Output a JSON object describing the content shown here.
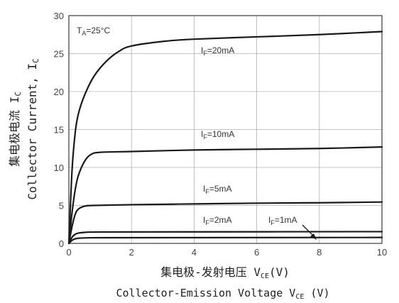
{
  "chart_data": {
    "type": "line",
    "xlabel_cn": "集电极-发射电压 V",
    "xlabel_cn_sub": "CE",
    "xlabel_cn_unit": "(V)",
    "xlabel_en": "Collector-Emission Voltage V",
    "xlabel_en_sub": "CE",
    "xlabel_en_unit": " (V)",
    "ylabel_cn": "集电极电流 I",
    "ylabel_cn_sub": "C",
    "ylabel_en": "Collector Current, I",
    "ylabel_en_sub": "C",
    "condition": {
      "main": "T",
      "sub": "A",
      "rest": "=25°C"
    },
    "xlim": [
      0,
      10
    ],
    "ylim": [
      0,
      30
    ],
    "xticks": [
      "0",
      "2",
      "4",
      "6",
      "8",
      "10"
    ],
    "yticks": [
      "0",
      "5",
      "10",
      "15",
      "20",
      "25",
      "30"
    ],
    "grid": true,
    "series": [
      {
        "name": "IF=20mA",
        "label_main": "I",
        "label_sub": "F",
        "label_rest": "=20mA",
        "x": [
          0,
          0.1,
          0.2,
          0.3,
          0.5,
          0.8,
          1.2,
          1.6,
          2.0,
          3.0,
          4.0,
          6.0,
          8.0,
          10.0
        ],
        "y": [
          0,
          9.5,
          14.5,
          17.0,
          19.5,
          22.0,
          24.0,
          25.3,
          26.0,
          26.6,
          26.9,
          27.2,
          27.5,
          27.9
        ]
      },
      {
        "name": "IF=10mA",
        "label_main": "I",
        "label_sub": "F",
        "label_rest": "=10mA",
        "x": [
          0,
          0.1,
          0.2,
          0.3,
          0.5,
          0.7,
          1.0,
          2.0,
          4.0,
          6.0,
          8.0,
          10.0
        ],
        "y": [
          0,
          4.0,
          7.0,
          8.9,
          10.8,
          11.7,
          12.0,
          12.1,
          12.3,
          12.4,
          12.5,
          12.7
        ]
      },
      {
        "name": "IF=5mA",
        "label_main": "I",
        "label_sub": "F",
        "label_rest": "=5mA",
        "x": [
          0,
          0.1,
          0.2,
          0.3,
          0.5,
          0.8,
          2.0,
          4.0,
          6.0,
          8.0,
          10.0
        ],
        "y": [
          0,
          2.2,
          3.8,
          4.5,
          4.9,
          5.0,
          5.1,
          5.2,
          5.3,
          5.35,
          5.45
        ]
      },
      {
        "name": "IF=2mA",
        "label_main": "I",
        "label_sub": "F",
        "label_rest": "=2mA",
        "x": [
          0,
          0.1,
          0.2,
          0.3,
          0.5,
          1.0,
          4.0,
          10.0
        ],
        "y": [
          0,
          0.8,
          1.2,
          1.35,
          1.45,
          1.5,
          1.52,
          1.55
        ]
      },
      {
        "name": "IF=1mA",
        "label_main": "I",
        "label_sub": "F",
        "label_rest": "=1mA",
        "x": [
          0,
          0.1,
          0.2,
          0.3,
          0.5,
          1.0,
          4.0,
          10.0
        ],
        "y": [
          0,
          0.4,
          0.6,
          0.68,
          0.72,
          0.75,
          0.76,
          0.78
        ]
      }
    ],
    "colors": {
      "curve": "#1a1a1a",
      "grid": "#b0b0b0",
      "axis": "#555555"
    }
  }
}
